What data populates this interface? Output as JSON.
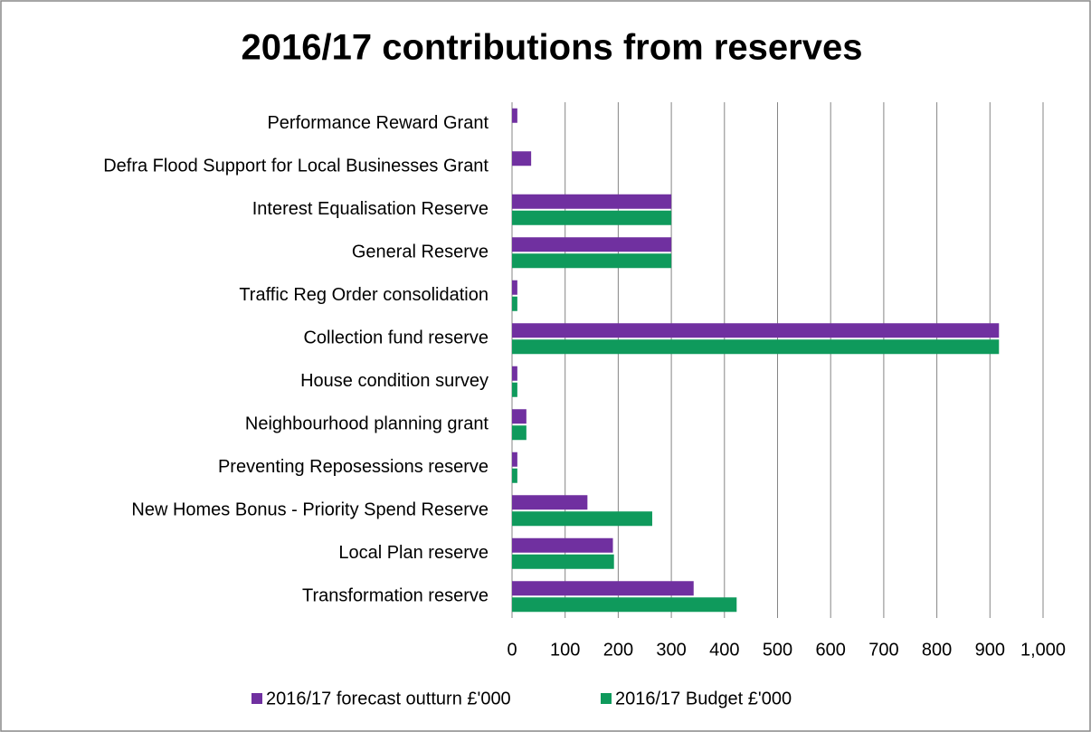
{
  "chart_data": {
    "type": "hbar",
    "title": "2016/17 contributions from reserves",
    "categories": [
      "Performance Reward Grant",
      "Defra Flood Support for Local Businesses Grant",
      "Interest Equalisation Reserve",
      "General Reserve",
      "Traffic Reg Order consolidation",
      "Collection fund reserve",
      "House condition survey",
      "Neighbourhood planning grant",
      "Preventing Reposessions reserve",
      "New Homes Bonus - Priority Spend Reserve",
      "Local Plan reserve",
      "Transformation reserve"
    ],
    "series": [
      {
        "name": "2016/17 forecast outturn £'000",
        "color": "#7030a0",
        "values": [
          10,
          36,
          300,
          300,
          10,
          917,
          10,
          27,
          10,
          142,
          190,
          342
        ]
      },
      {
        "name": "2016/17 Budget £'000",
        "color": "#0f9a5c",
        "values": [
          0,
          0,
          300,
          300,
          10,
          917,
          10,
          27,
          10,
          264,
          192,
          423
        ]
      }
    ],
    "xlim": [
      0,
      1000
    ],
    "xticks": [
      0,
      100,
      200,
      300,
      400,
      500,
      600,
      700,
      800,
      900,
      {
        "value": 1000,
        "label": "1,000"
      }
    ],
    "grid": true,
    "legend": "bottom"
  }
}
